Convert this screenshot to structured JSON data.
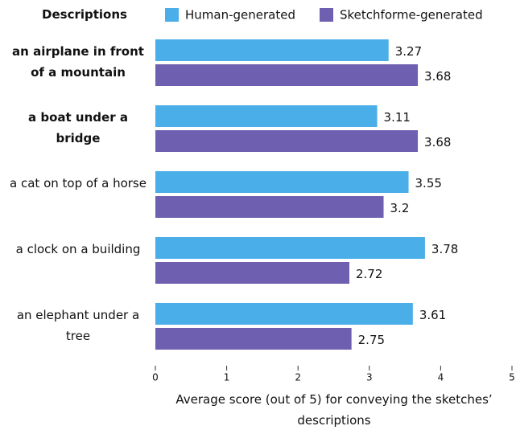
{
  "chart_data": {
    "type": "barh",
    "legend_title": "Descriptions",
    "categories": [
      "an airplane in front of a mountain",
      "a boat under a bridge",
      "a cat on top of a horse",
      "a clock on a building",
      "an elephant under a tree"
    ],
    "bold": [
      0,
      1
    ],
    "series": [
      {
        "name": "Human-generated",
        "color": "#4aaee9",
        "values": [
          3.27,
          3.11,
          3.55,
          3.78,
          3.61
        ]
      },
      {
        "name": "Sketchforme-generated",
        "color": "#6f5fb0",
        "values": [
          3.68,
          3.68,
          3.2,
          2.72,
          2.75
        ]
      }
    ],
    "xlim": [
      0,
      5
    ],
    "xticks": [
      0,
      1,
      2,
      3,
      4,
      5
    ],
    "xlabel": "Average score (out of 5) for conveying the sketches’ descriptions",
    "legend": "top"
  }
}
